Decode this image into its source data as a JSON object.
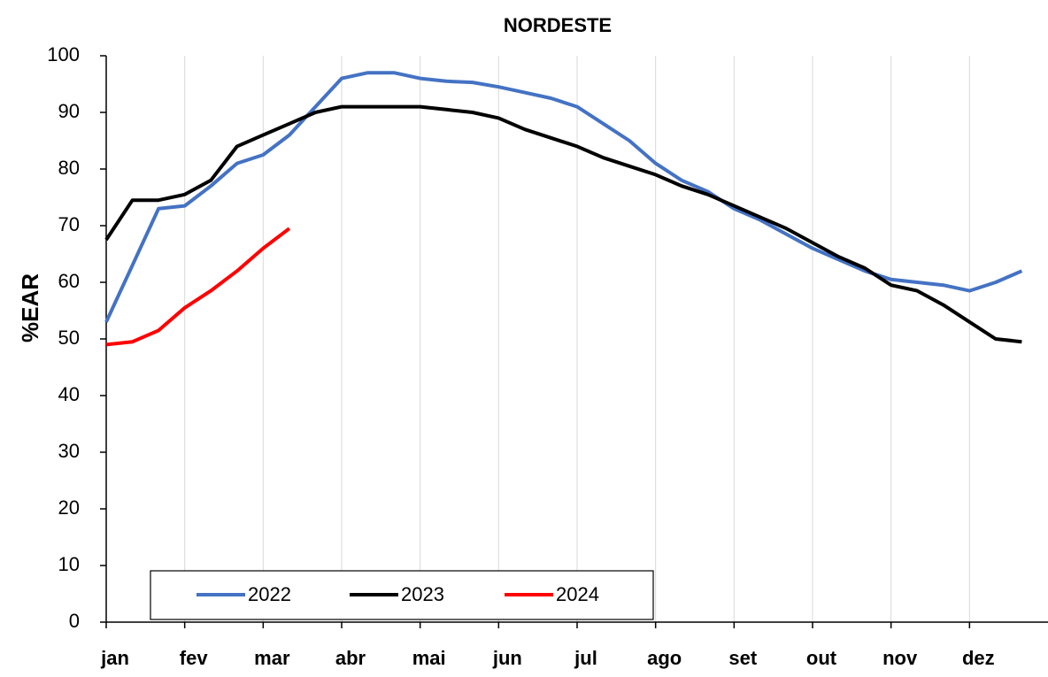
{
  "chart_data": {
    "type": "line",
    "title": "NORDESTE",
    "y_label": "%EAR",
    "categories": [
      "jan",
      null,
      null,
      "fev",
      null,
      null,
      "mar",
      null,
      null,
      "abr",
      null,
      null,
      "mai",
      null,
      null,
      "jun",
      null,
      null,
      "jul",
      null,
      null,
      "ago",
      null,
      null,
      "set",
      null,
      null,
      "out",
      null,
      null,
      "nov",
      null,
      null,
      "dez",
      null,
      null
    ],
    "series": [
      {
        "name": "2022",
        "color": "#4472c4",
        "values": [
          53,
          63,
          73,
          73.5,
          77,
          81,
          82.5,
          86,
          91,
          96,
          97,
          97,
          96,
          95.5,
          95.3,
          94.5,
          93.5,
          92.5,
          91,
          88,
          85,
          81,
          78,
          76,
          73,
          71,
          68.5,
          66,
          64,
          62,
          60.5,
          60,
          59.5,
          58.5,
          60,
          62
        ]
      },
      {
        "name": "2023",
        "color": "#000000",
        "values": [
          67.5,
          74.5,
          74.5,
          75.5,
          78,
          84,
          86,
          88,
          90,
          91,
          91,
          91,
          91,
          90.5,
          90,
          89,
          87,
          85.5,
          84,
          82,
          80.5,
          79,
          77,
          75.5,
          73.5,
          71.5,
          69.5,
          67,
          64.5,
          62.5,
          59.5,
          58.5,
          56,
          53,
          50,
          49.5
        ]
      },
      {
        "name": "2024",
        "color": "#ff0000",
        "values": [
          49,
          49.5,
          51.5,
          55.5,
          58.5,
          62,
          66,
          69.5,
          null,
          null,
          null,
          null,
          null,
          null,
          null,
          null,
          null,
          null,
          null,
          null,
          null,
          null,
          null,
          null,
          null,
          null,
          null,
          null,
          null,
          null,
          null,
          null,
          null,
          null,
          null,
          null
        ]
      }
    ],
    "ylim": [
      0,
      100
    ],
    "yticks": [
      0,
      10,
      20,
      30,
      40,
      50,
      60,
      70,
      80,
      90,
      100
    ],
    "grid": true
  }
}
